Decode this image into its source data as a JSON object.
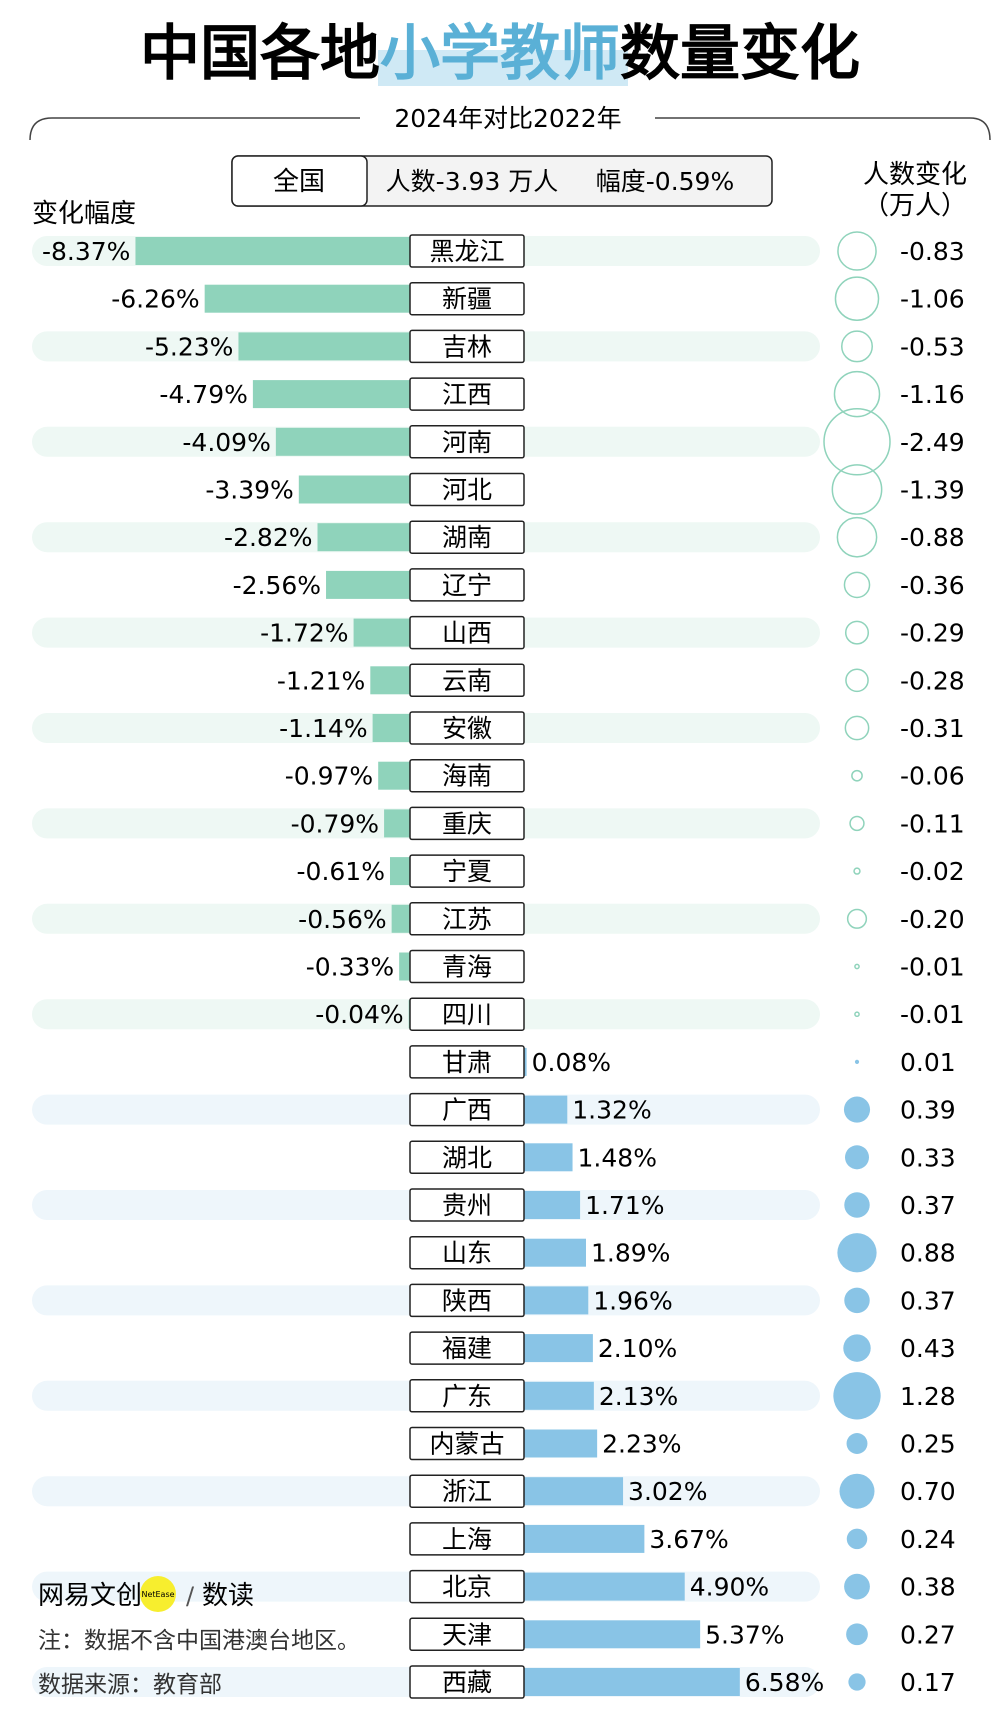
{
  "title": {
    "part1": "中国各地",
    "part2": "小学教师",
    "part3": "数量变化",
    "highlight_color": "#cfe9f5",
    "accent_text_color": "#5ab0d6"
  },
  "subtitle": "2024年对比2022年",
  "national": {
    "label": "全国",
    "count_text": "人数-3.93 万人",
    "rate_text": "幅度-0.59%"
  },
  "left_header": "变化幅度",
  "right_header_line1": "人数变化",
  "right_header_line2": "（万人）",
  "chart_data": {
    "type": "bar",
    "title": "中国各地小学教师数量变化",
    "subtitle": "2024年对比2022年",
    "xlabel": "变化幅度",
    "ylabel": "",
    "unit_rate": "%",
    "unit_count": "万人",
    "negative_color": "#8fd3bb",
    "positive_color": "#89c4e6",
    "categories": [
      "黑龙江",
      "新疆",
      "吉林",
      "江西",
      "河南",
      "河北",
      "湖南",
      "辽宁",
      "山西",
      "云南",
      "安徽",
      "海南",
      "重庆",
      "宁夏",
      "江苏",
      "青海",
      "四川",
      "甘肃",
      "广西",
      "湖北",
      "贵州",
      "山东",
      "陕西",
      "福建",
      "广东",
      "内蒙古",
      "浙江",
      "上海",
      "北京",
      "天津",
      "西藏"
    ],
    "rate_labels": [
      "-8.37%",
      "-6.26%",
      "-5.23%",
      "-4.79%",
      "-4.09%",
      "-3.39%",
      "-2.82%",
      "-2.56%",
      "-1.72%",
      "-1.21%",
      "-1.14%",
      "-0.97%",
      "-0.79%",
      "-0.61%",
      "-0.56%",
      "-0.33%",
      "-0.04%",
      "0.08%",
      "1.32%",
      "1.48%",
      "1.71%",
      "1.89%",
      "1.96%",
      "2.10%",
      "2.13%",
      "2.23%",
      "3.02%",
      "3.67%",
      "4.90%",
      "5.37%",
      "6.58%"
    ],
    "count_labels": [
      "-0.83",
      "-1.06",
      "-0.53",
      "-1.16",
      "-2.49",
      "-1.39",
      "-0.88",
      "-0.36",
      "-0.29",
      "-0.28",
      "-0.31",
      "-0.06",
      "-0.11",
      "-0.02",
      "-0.20",
      "-0.01",
      "-0.01",
      "0.01",
      "0.39",
      "0.33",
      "0.37",
      "0.88",
      "0.37",
      "0.43",
      "1.28",
      "0.25",
      "0.70",
      "0.24",
      "0.38",
      "0.27",
      "0.17"
    ],
    "series": [
      {
        "values": [
          -8.37,
          -6.26,
          -5.23,
          -4.79,
          -4.09,
          -3.39,
          -2.82,
          -2.56,
          -1.72,
          -1.21,
          -1.14,
          -0.97,
          -0.79,
          -0.61,
          -0.56,
          -0.33,
          -0.04,
          0.08,
          1.32,
          1.48,
          1.71,
          1.89,
          1.96,
          2.1,
          2.13,
          2.23,
          3.02,
          3.67,
          4.9,
          5.37,
          6.58
        ]
      },
      {
        "values": [
          -0.83,
          -1.06,
          -0.53,
          -1.16,
          -2.49,
          -1.39,
          -0.88,
          -0.36,
          -0.29,
          -0.28,
          -0.31,
          -0.06,
          -0.11,
          -0.02,
          -0.2,
          -0.01,
          -0.01,
          0.01,
          0.39,
          0.33,
          0.37,
          0.88,
          0.37,
          0.43,
          1.28,
          0.25,
          0.7,
          0.24,
          0.38,
          0.27,
          0.17
        ]
      }
    ]
  },
  "logo": {
    "brand": "网易文创",
    "badge": "NetEase",
    "separator": "/",
    "product": "数读",
    "badge_color": "#f7ee2e"
  },
  "note": "注：数据不含中国港澳台地区。",
  "source": "数据来源：教育部"
}
